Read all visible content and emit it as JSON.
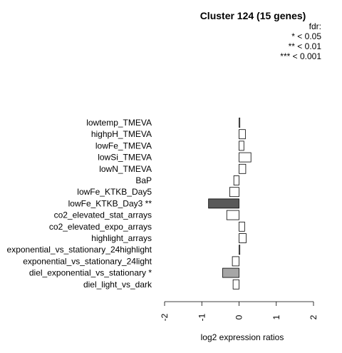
{
  "chart_data": {
    "type": "bar",
    "orientation": "horizontal",
    "title": "Cluster 124 (15 genes)",
    "legend": {
      "title": "fdr:",
      "entries": [
        "* < 0.05",
        "** < 0.01",
        "*** < 0.001"
      ],
      "placement": "top-right"
    },
    "xlabel": "log2 expression ratios",
    "xlim": [
      -2,
      2
    ],
    "xticks": [
      "-2",
      "-1",
      "0",
      "1",
      "2"
    ],
    "categories": [
      "lowtemp_TMEVA",
      "highpH_TMEVA",
      "lowFe_TMEVA",
      "lowSi_TMEVA",
      "lowN_TMEVA",
      "BaP",
      "lowFe_KTKB_Day5",
      "lowFe_KTKB_Day3 **",
      "co2_elevated_stat_arrays",
      "co2_elevated_expo_arrays",
      "highlight_arrays",
      "exponential_vs_stationary_24highlight",
      "exponential_vs_stationary_24light",
      "diel_exponential_vs_stationary *",
      "diel_light_vs_dark"
    ],
    "values": [
      0.01,
      0.17,
      0.13,
      0.32,
      0.18,
      -0.14,
      -0.25,
      -0.82,
      -0.33,
      0.15,
      0.19,
      0.0,
      -0.18,
      -0.44,
      -0.16
    ],
    "fill_colors": [
      "#ffffff",
      "#ffffff",
      "#ffffff",
      "#ffffff",
      "#ffffff",
      "#ffffff",
      "#ffffff",
      "#595959",
      "#ffffff",
      "#ffffff",
      "#ffffff",
      "#ffffff",
      "#ffffff",
      "#a6a6a6",
      "#ffffff"
    ],
    "grid": false
  }
}
